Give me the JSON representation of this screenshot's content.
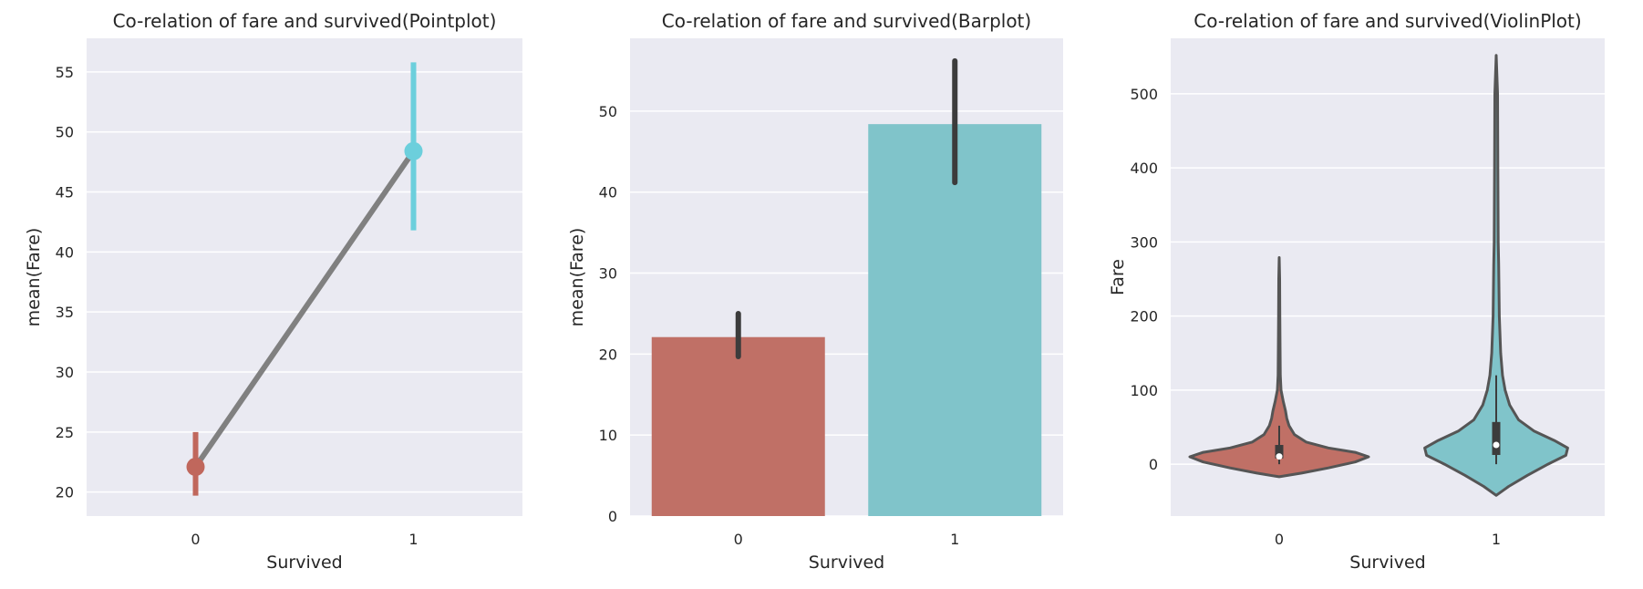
{
  "chart_data": [
    {
      "type": "point",
      "title": "Co-relation of fare and survived(Pointplot)",
      "xlabel": "Survived",
      "ylabel": "mean(Fare)",
      "categories": [
        "0",
        "1"
      ],
      "values": [
        22.1,
        48.4
      ],
      "ci_low": [
        19.7,
        41.8
      ],
      "ci_high": [
        25.0,
        55.8
      ],
      "colors": [
        "#c0675c",
        "#6ccfdc"
      ],
      "line_color": "#808080",
      "ylim": [
        18.0,
        57.8
      ],
      "yticks": [
        20,
        25,
        30,
        35,
        40,
        45,
        50,
        55
      ],
      "grid": true,
      "legend": "none"
    },
    {
      "type": "bar",
      "title": "Co-relation of fare and survived(Barplot)",
      "xlabel": "Survived",
      "ylabel": "mean(Fare)",
      "categories": [
        "0",
        "1"
      ],
      "values": [
        22.1,
        48.4
      ],
      "ci_low": [
        19.7,
        41.2
      ],
      "ci_high": [
        25.0,
        56.2
      ],
      "colors": [
        "#c07066",
        "#80c4ca"
      ],
      "errbar_color": "#3c3c3c",
      "ylim": [
        0,
        59
      ],
      "yticks": [
        0,
        10,
        20,
        30,
        40,
        50
      ],
      "grid": true,
      "legend": "none"
    },
    {
      "type": "violin",
      "title": "Co-relation of fare and survived(ViolinPlot)",
      "xlabel": "Survived",
      "ylabel": "Fare",
      "categories": [
        "0",
        "1"
      ],
      "colors": [
        "#c07066",
        "#80c4ca"
      ],
      "outline_color": "#555555",
      "ylim": [
        -70,
        575
      ],
      "yticks": [
        0,
        100,
        200,
        300,
        400,
        500
      ],
      "grid": true,
      "legend": "none",
      "violins": [
        {
          "category": "0",
          "min": -17,
          "max": 279,
          "median": 10.5,
          "q1": 7.9,
          "q3": 26,
          "whisker_low": 0,
          "whisker_high": 52,
          "profile": [
            [
              -17,
              0.0
            ],
            [
              -12,
              0.25
            ],
            [
              -5,
              0.55
            ],
            [
              3,
              0.85
            ],
            [
              10,
              1.0
            ],
            [
              16,
              0.85
            ],
            [
              22,
              0.55
            ],
            [
              30,
              0.3
            ],
            [
              40,
              0.17
            ],
            [
              52,
              0.11
            ],
            [
              62,
              0.085
            ],
            [
              72,
              0.07
            ],
            [
              85,
              0.045
            ],
            [
              100,
              0.02
            ],
            [
              120,
              0.012
            ],
            [
              150,
              0.01
            ],
            [
              200,
              0.007
            ],
            [
              250,
              0.005
            ],
            [
              279,
              0.0
            ]
          ]
        },
        {
          "category": "1",
          "min": -42,
          "max": 552,
          "median": 26,
          "q1": 12.5,
          "q3": 57,
          "whisker_low": 0,
          "whisker_high": 120,
          "profile": [
            [
              -42,
              0.0
            ],
            [
              -30,
              0.14
            ],
            [
              -15,
              0.35
            ],
            [
              0,
              0.58
            ],
            [
              12,
              0.78
            ],
            [
              22,
              0.8
            ],
            [
              32,
              0.65
            ],
            [
              45,
              0.42
            ],
            [
              60,
              0.25
            ],
            [
              80,
              0.15
            ],
            [
              100,
              0.1
            ],
            [
              120,
              0.07
            ],
            [
              150,
              0.05
            ],
            [
              200,
              0.035
            ],
            [
              250,
              0.03
            ],
            [
              270,
              0.028
            ],
            [
              300,
              0.022
            ],
            [
              400,
              0.018
            ],
            [
              500,
              0.015
            ],
            [
              552,
              0.0
            ]
          ]
        }
      ]
    }
  ]
}
